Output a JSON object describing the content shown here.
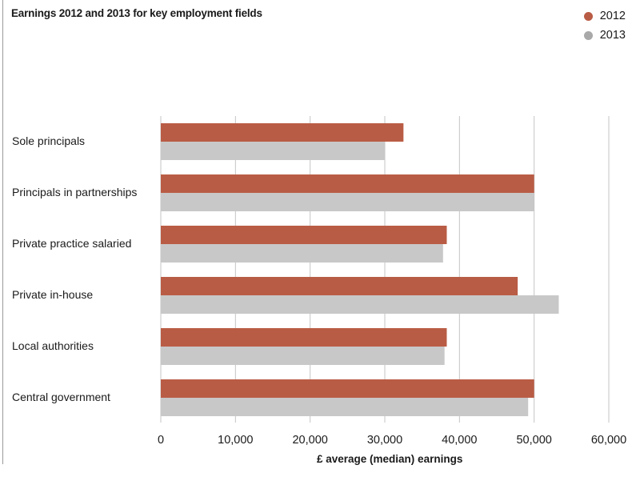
{
  "chart_data": {
    "type": "bar",
    "orientation": "horizontal",
    "title": "Earnings 2012 and 2013 for key employment fields",
    "xlabel": "£ average (median) earnings",
    "ylabel": "",
    "categories": [
      "Sole principals",
      "Principals in partnerships",
      "Private practice salaried",
      "Private in-house",
      "Local authorities",
      "Central government"
    ],
    "series": [
      {
        "name": "2012",
        "color": "#b95c45",
        "values": [
          32500,
          50000,
          38300,
          47800,
          38300,
          50000
        ]
      },
      {
        "name": "2013",
        "color": "#c8c8c8",
        "values": [
          30000,
          50000,
          37800,
          53300,
          38000,
          49200
        ]
      }
    ],
    "xlim": [
      0,
      60000
    ],
    "xticks": [
      "0",
      "10,000",
      "20,000",
      "30,000",
      "40,000",
      "50,000",
      "60,000"
    ],
    "xtick_values": [
      0,
      10000,
      20000,
      30000,
      40000,
      50000,
      60000
    ],
    "grid": true,
    "legend_position": "top-right"
  },
  "legend_swatch_colors": {
    "2012": "#b95c45",
    "2013": "#a9a9a9"
  }
}
